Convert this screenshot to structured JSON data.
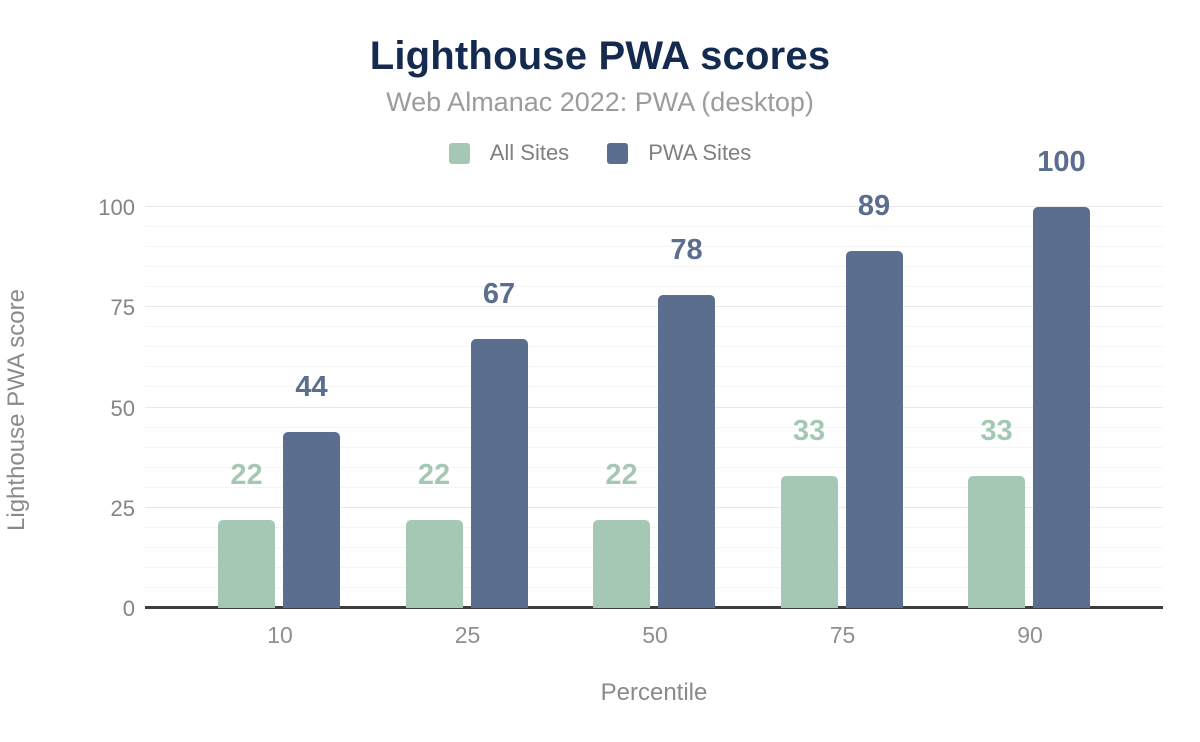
{
  "header": {
    "title": "Lighthouse PWA scores",
    "subtitle": "Web Almanac 2022: PWA (desktop)"
  },
  "legend": [
    {
      "label": "All Sites",
      "color": "#a5c8b4"
    },
    {
      "label": "PWA Sites",
      "color": "#5c6e8e"
    }
  ],
  "chart_data": {
    "type": "bar",
    "title": "Lighthouse PWA scores",
    "subtitle": "Web Almanac 2022: PWA (desktop)",
    "categories": [
      "10",
      "25",
      "50",
      "75",
      "90"
    ],
    "series": [
      {
        "name": "All Sites",
        "color": "#a5c8b4",
        "values": [
          22,
          22,
          22,
          33,
          33
        ]
      },
      {
        "name": "PWA Sites",
        "color": "#5c6e8e",
        "values": [
          44,
          67,
          78,
          89,
          100
        ]
      }
    ],
    "xlabel": "Percentile",
    "ylabel": "Lighthouse PWA score",
    "ylim": [
      0,
      100
    ],
    "yticks": [
      0,
      25,
      50,
      75,
      100
    ],
    "minor_grid_step": 5,
    "grid": true,
    "legend_position": "top",
    "data_labels": true
  },
  "colors": {
    "title_text": "#142a4e",
    "subtitle_text": "#9c9c9c",
    "axis_text": "#848484",
    "axis_line": "#3d3d3d",
    "major_grid": "#e9e9e9",
    "minor_grid": "#f5f5f5",
    "background": "#ffffff"
  }
}
